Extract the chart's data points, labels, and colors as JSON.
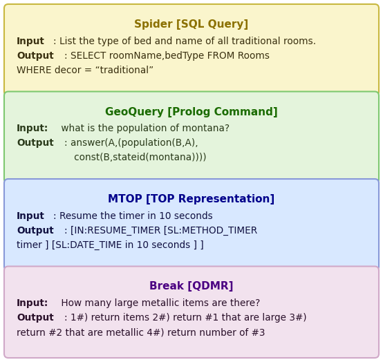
{
  "boxes": [
    {
      "title": "Spider [SQL Query]",
      "title_color": "#8B7000",
      "bg_color": "#FAF5CC",
      "edge_color": "#C8B840",
      "content_lines": [
        [
          {
            "bold": true,
            "text": "Input"
          },
          {
            "bold": false,
            "text": ": List the type of bed and name of all traditional rooms."
          }
        ],
        [
          {
            "bold": true,
            "text": "Output"
          },
          {
            "bold": false,
            "text": ": SELECT roomName,bedType FROM Rooms"
          }
        ],
        [
          {
            "bold": false,
            "text": "WHERE decor = “traditional”"
          }
        ]
      ],
      "content_color": "#3A3010"
    },
    {
      "title": "GeoQuery [Prolog Command]",
      "title_color": "#1A6B00",
      "bg_color": "#E4F4DC",
      "edge_color": "#7EC870",
      "content_lines": [
        [
          {
            "bold": true,
            "text": "Input:"
          },
          {
            "bold": false,
            "text": " what is the population of montana?"
          }
        ],
        [
          {
            "bold": true,
            "text": "Output"
          },
          {
            "bold": false,
            "text": ": answer(A,(population(B,A),"
          }
        ],
        [
          {
            "bold": false,
            "text": "                   const(B,stateid(montana))))"
          }
        ]
      ],
      "content_color": "#2A3A1A"
    },
    {
      "title": "MTOP [TOP Representation]",
      "title_color": "#00008B",
      "bg_color": "#D8E8FF",
      "edge_color": "#8898D8",
      "content_lines": [
        [
          {
            "bold": true,
            "text": "Input"
          },
          {
            "bold": false,
            "text": ": Resume the timer in 10 seconds"
          }
        ],
        [
          {
            "bold": true,
            "text": "Output"
          },
          {
            "bold": false,
            "text": ": [IN:RESUME_TIMER [SL:METHOD_TIMER"
          }
        ],
        [
          {
            "bold": false,
            "text": "timer ] [SL:DATE_TIME in 10 seconds ] ]"
          }
        ]
      ],
      "content_color": "#101040"
    },
    {
      "title": "Break [QDMR]",
      "title_color": "#4B0082",
      "bg_color": "#F2E2EE",
      "edge_color": "#D0A8C8",
      "content_lines": [
        [
          {
            "bold": true,
            "text": "Input:"
          },
          {
            "bold": false,
            "text": " How many large metallic items are there?"
          }
        ],
        [
          {
            "bold": true,
            "text": "Output"
          },
          {
            "bold": false,
            "text": ": 1#) return items 2#) return #1 that are large 3#)"
          }
        ],
        [
          {
            "bold": false,
            "text": "return #2 that are metallic 4#) return number of #3"
          }
        ]
      ],
      "content_color": "#2A102A"
    }
  ],
  "title_fontsize": 11.0,
  "content_fontsize": 9.8,
  "figsize": [
    5.54,
    5.24
  ],
  "dpi": 100
}
